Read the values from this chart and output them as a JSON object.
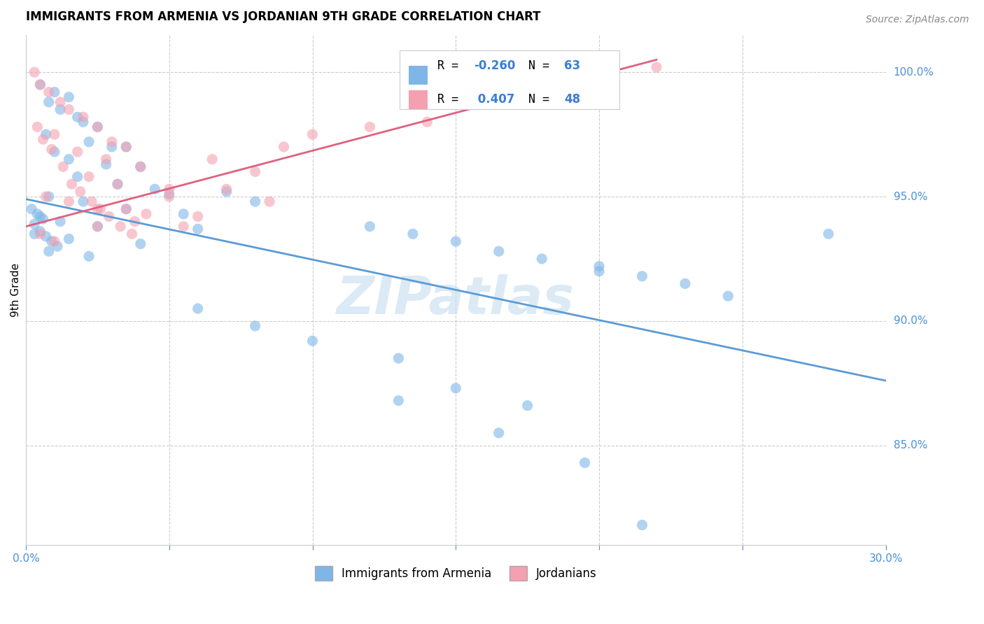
{
  "title": "IMMIGRANTS FROM ARMENIA VS JORDANIAN 9TH GRADE CORRELATION CHART",
  "source": "Source: ZipAtlas.com",
  "ylabel": "9th Grade",
  "color_blue": "#7EB6E8",
  "color_pink": "#F4A0B0",
  "color_blue_line": "#5B9BD5",
  "color_pink_line": "#E06080",
  "trendline_blue": [
    [
      0.0,
      94.9
    ],
    [
      0.3,
      87.6
    ]
  ],
  "trendline_pink": [
    [
      0.0,
      93.8
    ],
    [
      0.22,
      100.5
    ]
  ],
  "blue_points": [
    [
      0.005,
      99.5
    ],
    [
      0.01,
      99.2
    ],
    [
      0.008,
      98.8
    ],
    [
      0.015,
      99.0
    ],
    [
      0.012,
      98.5
    ],
    [
      0.018,
      98.2
    ],
    [
      0.02,
      98.0
    ],
    [
      0.025,
      97.8
    ],
    [
      0.007,
      97.5
    ],
    [
      0.022,
      97.2
    ],
    [
      0.03,
      97.0
    ],
    [
      0.035,
      97.0
    ],
    [
      0.01,
      96.8
    ],
    [
      0.015,
      96.5
    ],
    [
      0.028,
      96.3
    ],
    [
      0.04,
      96.2
    ],
    [
      0.018,
      95.8
    ],
    [
      0.032,
      95.5
    ],
    [
      0.045,
      95.3
    ],
    [
      0.05,
      95.1
    ],
    [
      0.008,
      95.0
    ],
    [
      0.02,
      94.8
    ],
    [
      0.035,
      94.5
    ],
    [
      0.055,
      94.3
    ],
    [
      0.005,
      94.2
    ],
    [
      0.012,
      94.0
    ],
    [
      0.025,
      93.8
    ],
    [
      0.06,
      93.7
    ],
    [
      0.003,
      93.5
    ],
    [
      0.015,
      93.3
    ],
    [
      0.04,
      93.1
    ],
    [
      0.07,
      95.2
    ],
    [
      0.008,
      92.8
    ],
    [
      0.022,
      92.6
    ],
    [
      0.08,
      94.8
    ],
    [
      0.002,
      94.5
    ],
    [
      0.004,
      94.3
    ],
    [
      0.006,
      94.1
    ],
    [
      0.003,
      93.9
    ],
    [
      0.005,
      93.6
    ],
    [
      0.007,
      93.4
    ],
    [
      0.009,
      93.2
    ],
    [
      0.011,
      93.0
    ],
    [
      0.12,
      93.8
    ],
    [
      0.135,
      93.5
    ],
    [
      0.15,
      93.2
    ],
    [
      0.165,
      92.8
    ],
    [
      0.18,
      92.5
    ],
    [
      0.2,
      92.2
    ],
    [
      0.215,
      91.8
    ],
    [
      0.23,
      91.5
    ],
    [
      0.245,
      91.0
    ],
    [
      0.28,
      93.5
    ],
    [
      0.06,
      90.5
    ],
    [
      0.08,
      89.8
    ],
    [
      0.1,
      89.2
    ],
    [
      0.13,
      88.5
    ],
    [
      0.15,
      87.3
    ],
    [
      0.175,
      86.6
    ],
    [
      0.195,
      84.3
    ],
    [
      0.215,
      81.8
    ],
    [
      0.2,
      92.0
    ],
    [
      0.165,
      85.5
    ],
    [
      0.13,
      86.8
    ]
  ],
  "pink_points": [
    [
      0.003,
      100.0
    ],
    [
      0.22,
      100.2
    ],
    [
      0.005,
      99.5
    ],
    [
      0.008,
      99.2
    ],
    [
      0.012,
      98.8
    ],
    [
      0.015,
      98.5
    ],
    [
      0.02,
      98.2
    ],
    [
      0.025,
      97.8
    ],
    [
      0.01,
      97.5
    ],
    [
      0.03,
      97.2
    ],
    [
      0.035,
      97.0
    ],
    [
      0.018,
      96.8
    ],
    [
      0.028,
      96.5
    ],
    [
      0.04,
      96.2
    ],
    [
      0.022,
      95.8
    ],
    [
      0.032,
      95.5
    ],
    [
      0.05,
      95.3
    ],
    [
      0.007,
      95.0
    ],
    [
      0.015,
      94.8
    ],
    [
      0.025,
      94.5
    ],
    [
      0.06,
      94.2
    ],
    [
      0.038,
      94.0
    ],
    [
      0.055,
      93.8
    ],
    [
      0.004,
      97.8
    ],
    [
      0.006,
      97.3
    ],
    [
      0.009,
      96.9
    ],
    [
      0.013,
      96.2
    ],
    [
      0.016,
      95.5
    ],
    [
      0.019,
      95.2
    ],
    [
      0.023,
      94.8
    ],
    [
      0.026,
      94.5
    ],
    [
      0.029,
      94.2
    ],
    [
      0.033,
      93.8
    ],
    [
      0.037,
      93.5
    ],
    [
      0.07,
      95.3
    ],
    [
      0.08,
      96.0
    ],
    [
      0.09,
      97.0
    ],
    [
      0.1,
      97.5
    ],
    [
      0.12,
      97.8
    ],
    [
      0.14,
      98.0
    ],
    [
      0.005,
      93.5
    ],
    [
      0.01,
      93.2
    ],
    [
      0.035,
      94.5
    ],
    [
      0.05,
      95.0
    ],
    [
      0.025,
      93.8
    ],
    [
      0.042,
      94.3
    ],
    [
      0.065,
      96.5
    ],
    [
      0.085,
      94.8
    ]
  ]
}
